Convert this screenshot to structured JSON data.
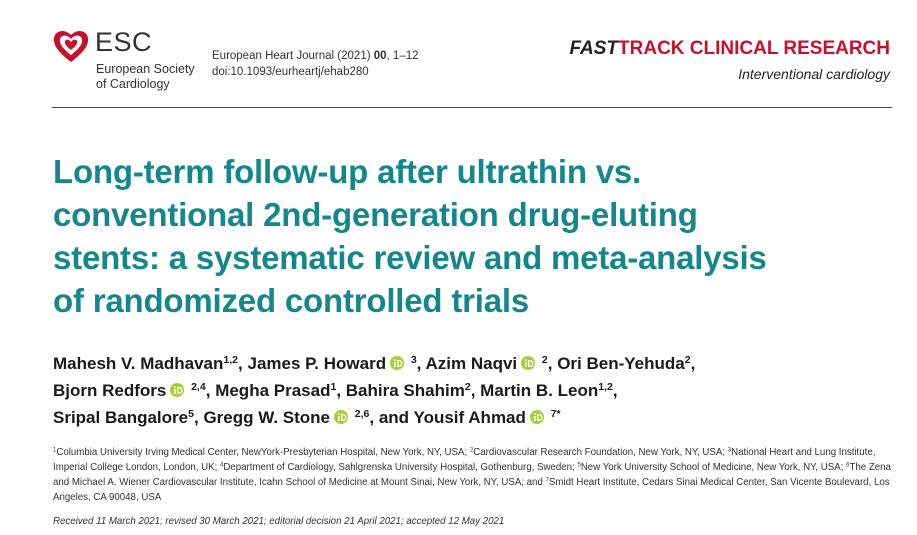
{
  "header": {
    "logo_abbr": "ESC",
    "logo_name_1": "European Society",
    "logo_name_2": "of Cardiology",
    "journal": "European Heart Journal (2021)",
    "volume": "00",
    "pages": ", 1–12",
    "doi": "doi:10.1093/eurheartj/ehab280",
    "track_1": "FAST",
    "track_2": "TRACK CLINICAL RESEARCH",
    "section": "Interventional cardiology"
  },
  "title_lines": [
    "Long-term follow-up after ultrathin vs.",
    "conventional 2nd-generation drug-eluting",
    "stents: a systematic review and meta-analysis",
    "of randomized controlled trials"
  ],
  "author_lines": [
    [
      {
        "name": "Mahesh V. Madhavan",
        "sup": "1,2",
        "after": ","
      },
      {
        "name": "James P. Howard",
        "orcid": true,
        "sup": "3",
        "after": ","
      },
      {
        "name": "Azim Naqvi",
        "orcid": true,
        "sup": "2",
        "after": ","
      },
      {
        "name": "Ori Ben-Yehuda",
        "sup": "2",
        "after": ","
      }
    ],
    [
      {
        "name": "Bjorn Redfors",
        "orcid": true,
        "sup": "2,4",
        "after": ","
      },
      {
        "name": "Megha Prasad",
        "sup": "1",
        "after": ","
      },
      {
        "name": "Bahira Shahim",
        "sup": "2",
        "after": ","
      },
      {
        "name": "Martin B. Leon",
        "sup": "1,2",
        "after": ","
      }
    ],
    [
      {
        "name": "Sripal Bangalore",
        "sup": "5",
        "after": ","
      },
      {
        "name": "Gregg W. Stone",
        "orcid": true,
        "sup": "2,6",
        "after": ","
      },
      {
        "prefix": "and",
        "name": "Yousif Ahmad",
        "orcid": true,
        "sup": "7*"
      }
    ]
  ],
  "affiliations": [
    {
      "num": "1",
      "text": "Columbia University Irving Medical Center, NewYork-Presbyterian Hospital, New York, NY, USA;"
    },
    {
      "num": "2",
      "text": "Cardiovascular Research Foundation, New York, NY, USA;"
    },
    {
      "num": "3",
      "text": "National Heart and Lung Institute, Imperial College London, London, UK;"
    },
    {
      "num": "4",
      "text": "Department of Cardiology, Sahlgrenska University Hospital, Gothenburg, Sweden;"
    },
    {
      "num": "5",
      "text": "New York University School of Medicine, New York, NY, USA;"
    },
    {
      "num": "6",
      "text": "The Zena and Michael A. Wiener Cardiovascular Institute, Icahn School of Medicine at Mount Sinai, New York, NY, USA; and"
    },
    {
      "num": "7",
      "text": "Smidt Heart Institute, Cedars Sinai Medical Center, San Vicente Boulevard, Los Angeles, CA 90048, USA"
    }
  ],
  "dates": "Received 11 March 2021; revised 30 March 2021; editorial decision 21 April 2021; accepted 12 May 2021"
}
